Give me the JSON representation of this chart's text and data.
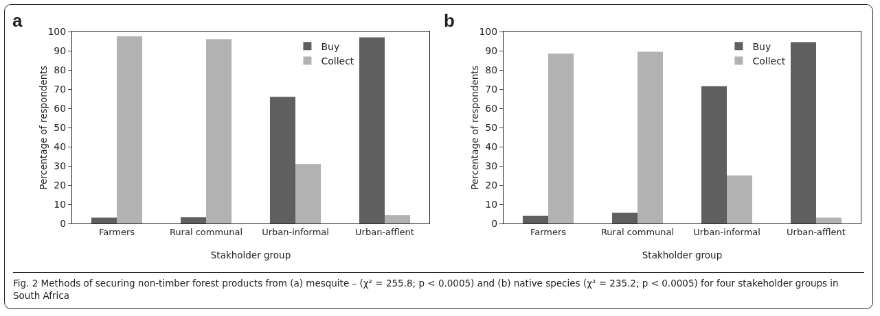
{
  "chart_data": [
    {
      "type": "bar",
      "title": "a",
      "xlabel": "Stakholder group",
      "ylabel": "Percentage of respondents",
      "categories": [
        "Farmers",
        "Rural communal",
        "Urban-informal",
        "Urban-afflent"
      ],
      "series": [
        {
          "name": "Buy",
          "color": "#5f5f5f",
          "values": [
            3,
            3.2,
            66,
            97
          ]
        },
        {
          "name": "Collect",
          "color": "#b2b2b2",
          "values": [
            97.5,
            96,
            31,
            4.3
          ]
        }
      ],
      "ylim": [
        0,
        100
      ],
      "yticks": [
        0,
        10,
        20,
        30,
        40,
        50,
        60,
        70,
        80,
        90,
        100
      ],
      "grid": false,
      "legend": "top right",
      "annotations": [
        "Fig. 2 Methods of securing non-timber forest products from (a) mesquite – (χ² = 255.8; p < 0.0005) and (b) native species (χ² = 235.2; p < 0.0005) for four stakeholder groups in South Africa"
      ]
    },
    {
      "type": "bar",
      "title": "b",
      "xlabel": "Stakholder group",
      "ylabel": "Percentage of respondents",
      "categories": [
        "Farmers",
        "Rural communal",
        "Urban-informal",
        "Urban-afflent"
      ],
      "series": [
        {
          "name": "Buy",
          "color": "#5f5f5f",
          "values": [
            4,
            5.5,
            71.5,
            94.5
          ]
        },
        {
          "name": "Collect",
          "color": "#b2b2b2",
          "values": [
            88.5,
            89.5,
            25,
            3
          ]
        }
      ],
      "ylim": [
        0,
        100
      ],
      "yticks": [
        0,
        10,
        20,
        30,
        40,
        50,
        60,
        70,
        80,
        90,
        100
      ],
      "grid": false,
      "legend": "top right"
    }
  ]
}
